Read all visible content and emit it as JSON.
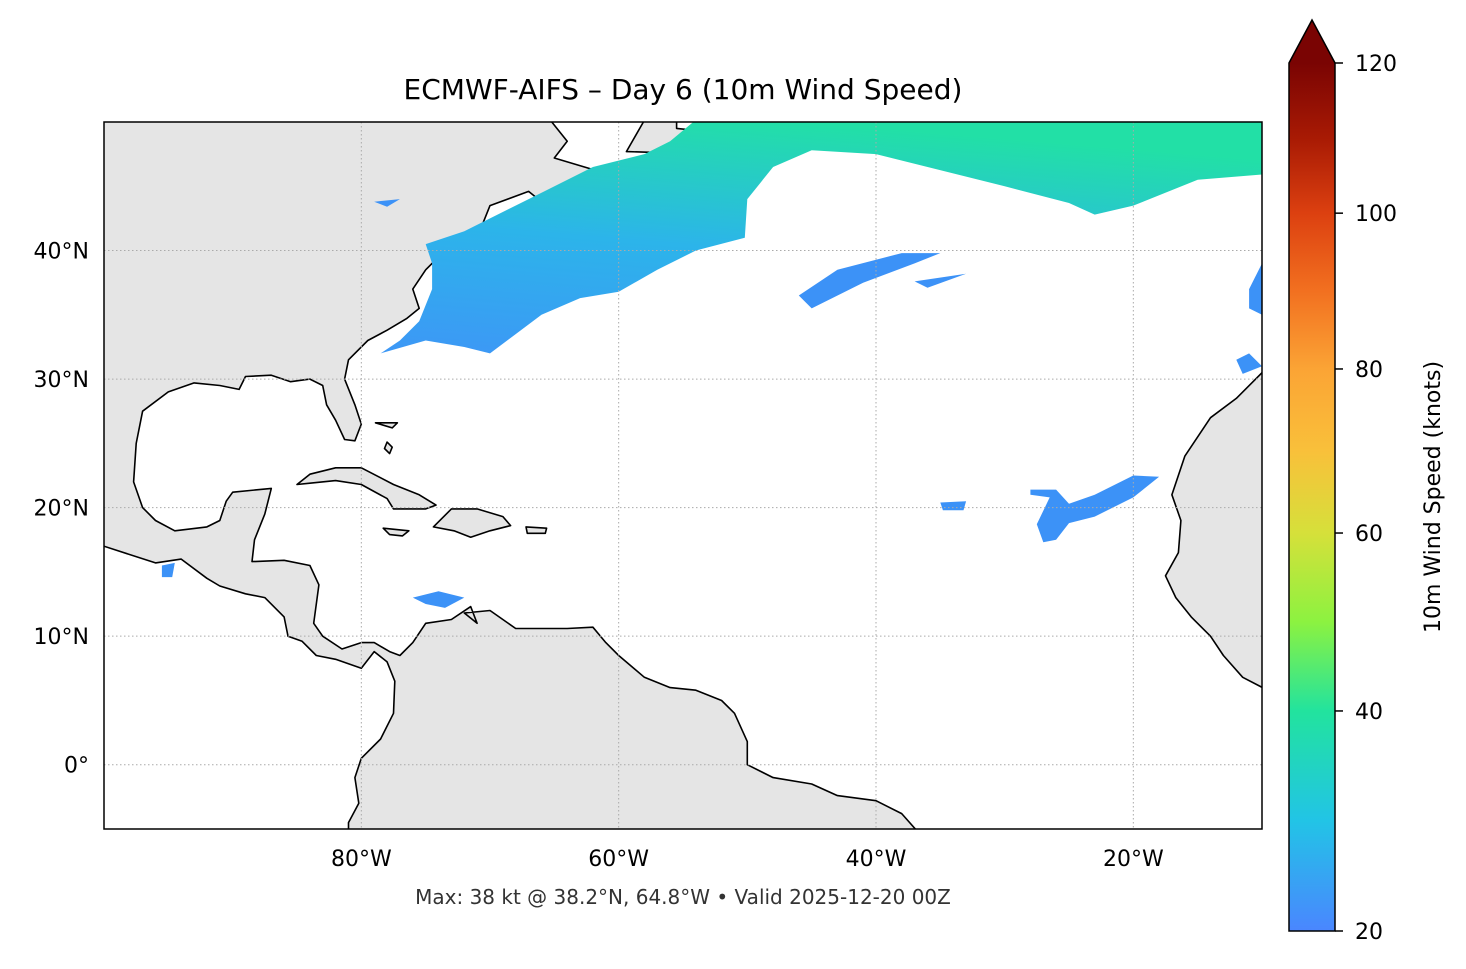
{
  "title": "ECMWF-AIFS – Day 6 (10m Wind Speed)",
  "footer": "Max: 38 kt @ 38.2°N, 64.8°W • Valid 2025-12-20 00Z",
  "map": {
    "extent": {
      "lon": [
        -100,
        -10
      ],
      "lat": [
        -5,
        50
      ]
    },
    "lon_ticks": [
      {
        "value": -80,
        "label": "80°W"
      },
      {
        "value": -60,
        "label": "60°W"
      },
      {
        "value": -40,
        "label": "40°W"
      },
      {
        "value": -20,
        "label": "20°W"
      }
    ],
    "lat_ticks": [
      {
        "value": 40,
        "label": "40°N"
      },
      {
        "value": 30,
        "label": "30°N"
      },
      {
        "value": 20,
        "label": "20°N"
      },
      {
        "value": 10,
        "label": "10°N"
      },
      {
        "value": 0,
        "label": "0°"
      }
    ],
    "gridlines": true,
    "land_color": "#e5e5e5",
    "ocean_color": "#ffffff",
    "max_wind": {
      "value_kt": 38,
      "lat": 38.2,
      "lon": -64.8
    }
  },
  "colorbar": {
    "label": "10m Wind Speed (knots)",
    "ticks": [
      {
        "value": 20,
        "label": "20"
      },
      {
        "value": 40,
        "label": "40"
      },
      {
        "value": 60,
        "label": "60"
      },
      {
        "value": 80,
        "label": "80"
      },
      {
        "value": 100,
        "label": "100"
      },
      {
        "value": 120,
        "label": "120"
      }
    ],
    "range": [
      20,
      120
    ],
    "extend": "max",
    "colors": [
      "#4a86ff",
      "#22c4e6",
      "#22e39e",
      "#8cf240",
      "#d6e03a",
      "#f9c03a",
      "#fba435",
      "#f27020",
      "#dc4010",
      "#a81a04",
      "#7a0403"
    ]
  }
}
